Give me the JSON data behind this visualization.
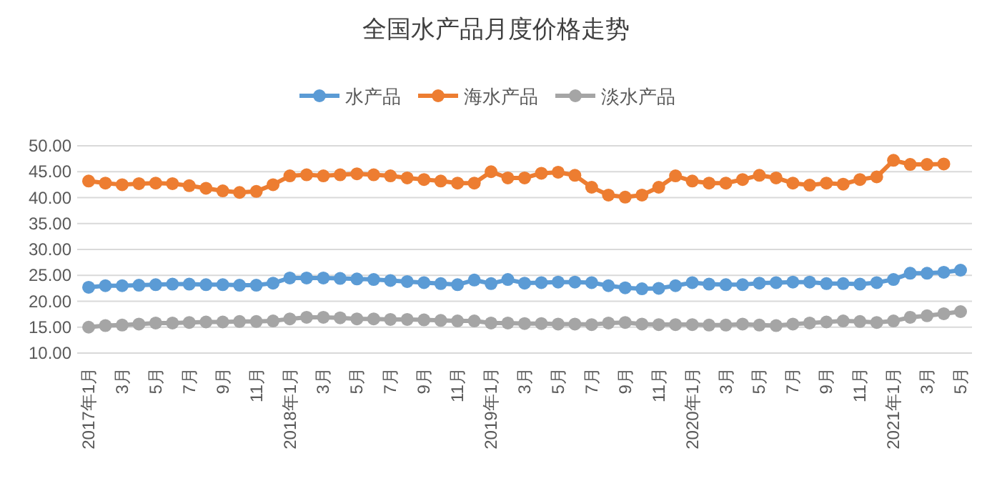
{
  "chart_data": {
    "type": "line",
    "title": "全国水产品月度价格走势",
    "categories": [
      "2017年1月",
      null,
      "3月",
      null,
      "5月",
      null,
      "7月",
      null,
      "9月",
      null,
      "11月",
      null,
      "2018年1月",
      null,
      "3月",
      null,
      "5月",
      null,
      "7月",
      null,
      "9月",
      null,
      "11月",
      null,
      "2019年1月",
      null,
      "3月",
      null,
      "5月",
      null,
      "7月",
      null,
      "9月",
      null,
      "11月",
      null,
      "2020年1月",
      null,
      "3月",
      null,
      "5月",
      null,
      "7月",
      null,
      "9月",
      null,
      "11月",
      null,
      "2021年1月",
      null,
      "3月",
      null,
      "5月"
    ],
    "series": [
      {
        "name": "水产品",
        "color": "#5b9bd5",
        "values": [
          22.7,
          23.0,
          23.0,
          23.1,
          23.2,
          23.3,
          23.3,
          23.2,
          23.2,
          23.1,
          23.1,
          23.5,
          24.5,
          24.5,
          24.5,
          24.4,
          24.3,
          24.2,
          24.0,
          23.8,
          23.6,
          23.4,
          23.2,
          24.1,
          23.4,
          24.2,
          23.5,
          23.6,
          23.7,
          23.7,
          23.6,
          23.0,
          22.6,
          22.4,
          22.5,
          23.0,
          23.6,
          23.3,
          23.2,
          23.2,
          23.5,
          23.6,
          23.7,
          23.7,
          23.4,
          23.4,
          23.3,
          23.6,
          24.2,
          25.4,
          25.4,
          25.6,
          26.0
        ]
      },
      {
        "name": "海水产品",
        "color": "#ed7d31",
        "values": [
          43.2,
          42.8,
          42.5,
          42.7,
          42.8,
          42.7,
          42.3,
          41.8,
          41.3,
          41.0,
          41.2,
          42.5,
          44.2,
          44.4,
          44.2,
          44.4,
          44.6,
          44.4,
          44.2,
          43.8,
          43.5,
          43.2,
          42.8,
          42.8,
          45.0,
          43.8,
          43.8,
          44.7,
          44.9,
          44.3,
          42.0,
          40.5,
          40.1,
          40.5,
          42.0,
          44.2,
          43.2,
          42.8,
          42.8,
          43.5,
          44.3,
          43.8,
          42.8,
          42.4,
          42.8,
          42.6,
          43.5,
          44.0,
          47.2,
          46.4,
          46.4,
          46.5,
          null
        ]
      },
      {
        "name": "淡水产品",
        "color": "#a5a5a5",
        "values": [
          15.0,
          15.3,
          15.4,
          15.6,
          15.8,
          15.8,
          15.9,
          16.0,
          16.0,
          16.1,
          16.1,
          16.2,
          16.6,
          16.9,
          16.9,
          16.8,
          16.6,
          16.6,
          16.5,
          16.5,
          16.4,
          16.3,
          16.2,
          16.2,
          15.8,
          15.8,
          15.7,
          15.7,
          15.6,
          15.6,
          15.5,
          15.8,
          15.9,
          15.6,
          15.5,
          15.5,
          15.5,
          15.4,
          15.4,
          15.6,
          15.4,
          15.3,
          15.6,
          15.8,
          16.0,
          16.2,
          16.1,
          15.9,
          16.2,
          16.9,
          17.2,
          17.6,
          18.0
        ]
      }
    ],
    "ylim": [
      10,
      50
    ],
    "yticks": [
      {
        "value": 10,
        "label": "10.00"
      },
      {
        "value": 15,
        "label": "15.00"
      },
      {
        "value": 20,
        "label": "20.00"
      },
      {
        "value": 25,
        "label": "25.00"
      },
      {
        "value": 30,
        "label": "30.00"
      },
      {
        "value": 35,
        "label": "35.00"
      },
      {
        "value": 40,
        "label": "40.00"
      },
      {
        "value": 45,
        "label": "45.00"
      },
      {
        "value": 50,
        "label": "50.00"
      }
    ],
    "grid": "y",
    "legend": "top",
    "marker": "circle",
    "line_style": "solid"
  }
}
